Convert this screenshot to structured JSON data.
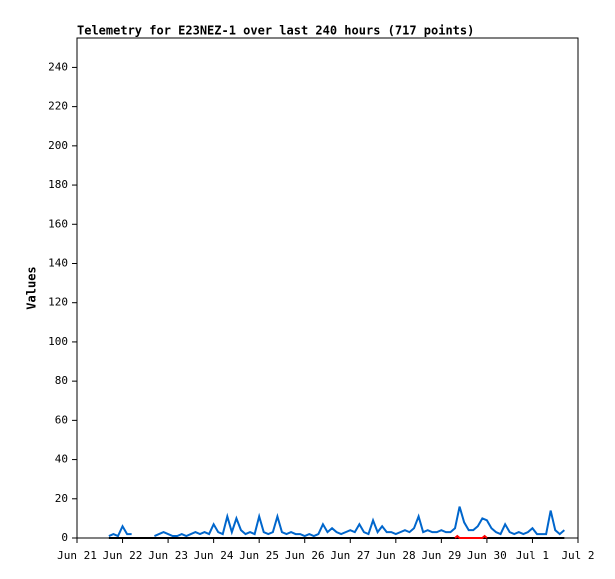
{
  "chart_data": {
    "type": "line",
    "title": "Telemetry for E23NEZ-1 over last 240 hours (717 points)",
    "y_label": "Values",
    "xlim": [
      0,
      11
    ],
    "xticks": [
      {
        "value": 0,
        "label": "Jun 21"
      },
      {
        "value": 1,
        "label": "Jun 22"
      },
      {
        "value": 2,
        "label": "Jun 23"
      },
      {
        "value": 3,
        "label": "Jun 24"
      },
      {
        "value": 4,
        "label": "Jun 25"
      },
      {
        "value": 5,
        "label": "Jun 26"
      },
      {
        "value": 6,
        "label": "Jun 27"
      },
      {
        "value": 7,
        "label": "Jun 28"
      },
      {
        "value": 8,
        "label": "Jun 29"
      },
      {
        "value": 9,
        "label": "Jun 30"
      },
      {
        "value": 10,
        "label": "Jul 1"
      },
      {
        "value": 11,
        "label": "Jul 2"
      }
    ],
    "ylim": [
      0,
      255
    ],
    "yticks": [
      0,
      20,
      40,
      60,
      80,
      100,
      120,
      140,
      160,
      180,
      200,
      220,
      240
    ],
    "series": [
      {
        "color": "#0066cc",
        "x": [
          0.7,
          0.8,
          0.9,
          1.0,
          1.1,
          1.2,
          1.3,
          1.4,
          1.5,
          1.6,
          1.7,
          1.8,
          1.9,
          2.0,
          2.1,
          2.2,
          2.3,
          2.4,
          2.5,
          2.6,
          2.7,
          2.8,
          2.9,
          3.0,
          3.1,
          3.2,
          3.3,
          3.4,
          3.5,
          3.6,
          3.7,
          3.8,
          3.9,
          4.0,
          4.1,
          4.2,
          4.3,
          4.4,
          4.5,
          4.6,
          4.7,
          4.8,
          4.9,
          5.0,
          5.1,
          5.2,
          5.3,
          5.4,
          5.5,
          5.6,
          5.7,
          5.8,
          5.9,
          6.0,
          6.1,
          6.2,
          6.3,
          6.4,
          6.5,
          6.6,
          6.7,
          6.8,
          6.9,
          7.0,
          7.1,
          7.2,
          7.3,
          7.4,
          7.5,
          7.6,
          7.7,
          7.8,
          7.9,
          8.0,
          8.1,
          8.2,
          8.3,
          8.4,
          8.5,
          8.6,
          8.7,
          8.8,
          8.9,
          9.0,
          9.1,
          9.2,
          9.3,
          9.4,
          9.5,
          9.6,
          9.7,
          9.8,
          9.9,
          10.0,
          10.1,
          10.2,
          10.3,
          10.4,
          10.5,
          10.6,
          10.7
        ],
        "values": [
          1,
          2,
          1,
          6,
          2,
          2,
          null,
          null,
          null,
          null,
          1,
          2,
          3,
          2,
          1,
          1,
          2,
          1,
          2,
          3,
          2,
          3,
          2,
          7,
          3,
          2,
          11,
          3,
          10,
          4,
          2,
          3,
          2,
          11,
          3,
          2,
          3,
          11,
          3,
          2,
          3,
          2,
          2,
          1,
          2,
          1,
          2,
          7,
          3,
          5,
          3,
          2,
          3,
          4,
          3,
          7,
          3,
          2,
          9,
          3,
          6,
          3,
          3,
          2,
          3,
          4,
          3,
          5,
          11,
          3,
          4,
          3,
          3,
          4,
          3,
          3,
          5,
          16,
          8,
          4,
          4,
          6,
          10,
          9,
          5,
          3,
          2,
          7,
          3,
          2,
          3,
          2,
          3,
          5,
          2,
          2,
          2,
          14,
          4,
          2,
          4
        ]
      },
      {
        "color": "#000000",
        "x": [
          0.7,
          10.7
        ],
        "values": [
          0,
          0
        ]
      },
      {
        "color": "#ff0000",
        "x": [
          8.3,
          8.35,
          8.4,
          8.9,
          8.95,
          9.0
        ],
        "values": [
          0,
          1,
          0,
          0,
          1,
          0
        ]
      }
    ]
  }
}
